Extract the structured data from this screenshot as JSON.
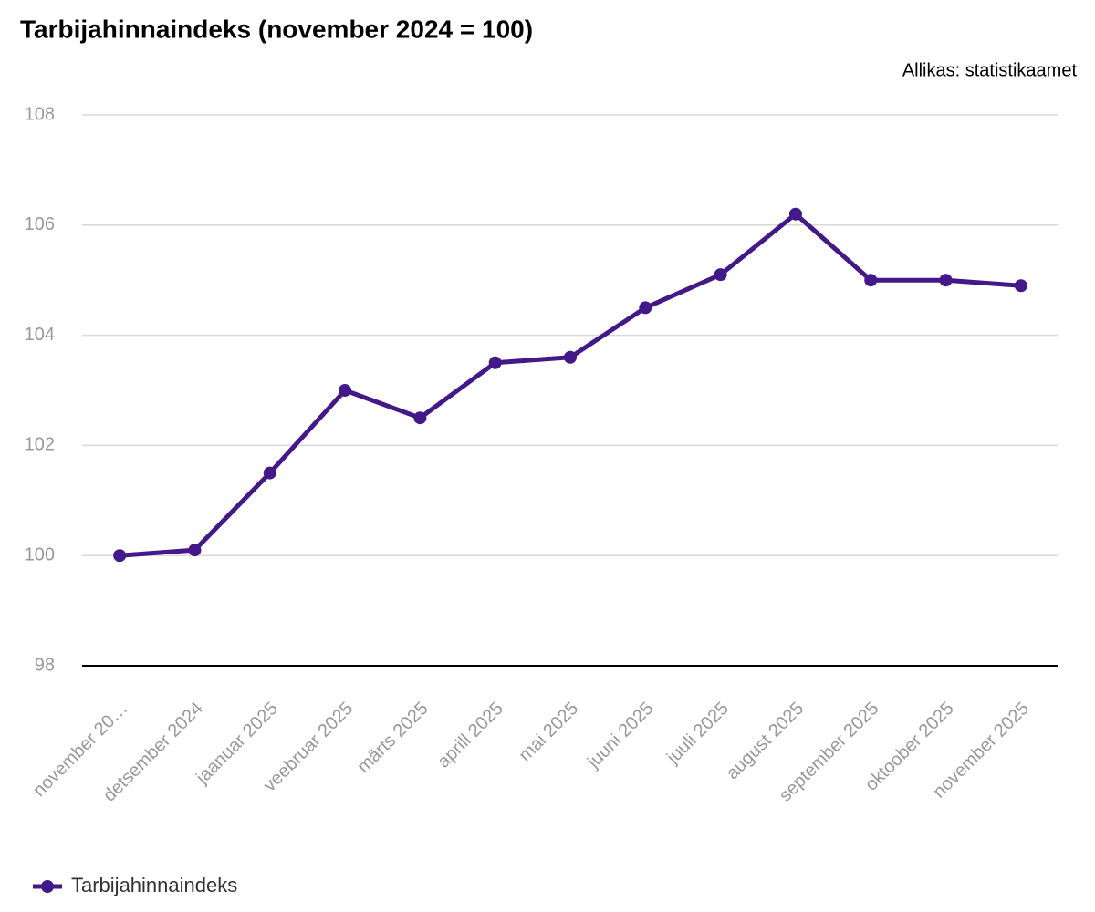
{
  "chart_data": {
    "type": "line",
    "title": "Tarbijahinnaindeks (november 2024 = 100)",
    "subtitle": "Allikas: statistikaamet",
    "categories": [
      "november 20…",
      "detsember 2024",
      "jaanuar 2025",
      "veebruar 2025",
      "märts 2025",
      "aprill 2025",
      "mai 2025",
      "juuni 2025",
      "juuli 2025",
      "august 2025",
      "september 2025",
      "oktoober 2025",
      "november 2025"
    ],
    "series": [
      {
        "name": "Tarbijahinnaindeks",
        "color": "#43198a",
        "values": [
          100.0,
          100.1,
          101.5,
          103.0,
          102.5,
          103.5,
          103.6,
          104.5,
          105.1,
          106.2,
          105.0,
          105.0,
          104.9
        ]
      }
    ],
    "ylim": [
      98,
      108
    ],
    "yticks": [
      98,
      100,
      102,
      104,
      106,
      108
    ],
    "grid": true,
    "legend": "bottom-left"
  }
}
